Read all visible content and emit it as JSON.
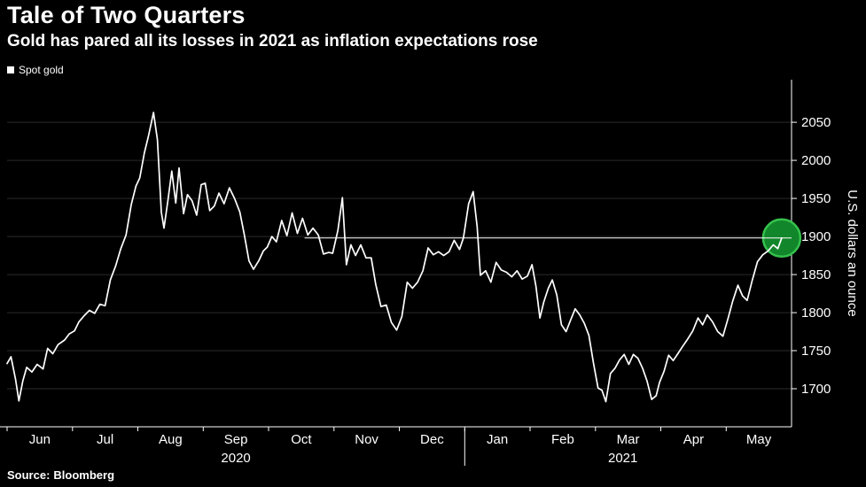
{
  "header": {
    "title": "Tale of Two Quarters",
    "subtitle": "Gold has pared all its losses in 2021 as inflation expectations rose"
  },
  "legend": {
    "label": "Spot gold",
    "marker_color": "#ffffff"
  },
  "source": {
    "label": "Source:",
    "value": "Bloomberg"
  },
  "chart_data": {
    "type": "line",
    "title": "Tale of Two Quarters",
    "subtitle": "Gold has pared all its losses in 2021 as inflation expectations rose",
    "ylabel": "U.S. dollars an ounce",
    "x_months": [
      "Jun",
      "Jul",
      "Aug",
      "Sep",
      "Oct",
      "Nov",
      "Dec",
      "Jan",
      "Feb",
      "Mar",
      "Apr",
      "May"
    ],
    "year_labels": [
      {
        "label": "2020",
        "month": 3.5
      },
      {
        "label": "2021",
        "month": 9.42
      }
    ],
    "year_divider_month": 7,
    "x_range": [
      0,
      12
    ],
    "y_range": [
      1650,
      2106
    ],
    "y_ticks": [
      1700,
      1750,
      1800,
      1850,
      1900,
      1950,
      2000,
      2050
    ],
    "grid": true,
    "colors": {
      "background": "#000000",
      "line": "#ffffff",
      "grid": "#2b2b2b",
      "axis": "#ffffff",
      "text": "#ffffff"
    },
    "last_price": {
      "value": 1898,
      "line_start_month": 4.55,
      "marker_fill": "#12862b",
      "marker_stroke": "#35c24d"
    },
    "series": [
      {
        "name": "Spot gold",
        "color": "#ffffff",
        "points": [
          [
            0.0,
            1733
          ],
          [
            0.06,
            1742
          ],
          [
            0.13,
            1712
          ],
          [
            0.18,
            1684
          ],
          [
            0.24,
            1710
          ],
          [
            0.3,
            1728
          ],
          [
            0.38,
            1722
          ],
          [
            0.46,
            1732
          ],
          [
            0.55,
            1726
          ],
          [
            0.62,
            1753
          ],
          [
            0.7,
            1746
          ],
          [
            0.78,
            1758
          ],
          [
            0.88,
            1764
          ],
          [
            0.95,
            1772
          ],
          [
            1.03,
            1776
          ],
          [
            1.1,
            1788
          ],
          [
            1.18,
            1796
          ],
          [
            1.26,
            1803
          ],
          [
            1.34,
            1799
          ],
          [
            1.42,
            1811
          ],
          [
            1.5,
            1809
          ],
          [
            1.58,
            1843
          ],
          [
            1.66,
            1861
          ],
          [
            1.74,
            1884
          ],
          [
            1.82,
            1902
          ],
          [
            1.9,
            1942
          ],
          [
            1.97,
            1966
          ],
          [
            2.03,
            1977
          ],
          [
            2.1,
            2010
          ],
          [
            2.16,
            2031
          ],
          [
            2.24,
            2063
          ],
          [
            2.3,
            2027
          ],
          [
            2.36,
            1932
          ],
          [
            2.4,
            1911
          ],
          [
            2.46,
            1947
          ],
          [
            2.52,
            1986
          ],
          [
            2.58,
            1944
          ],
          [
            2.63,
            1990
          ],
          [
            2.7,
            1930
          ],
          [
            2.76,
            1955
          ],
          [
            2.83,
            1947
          ],
          [
            2.9,
            1928
          ],
          [
            2.97,
            1968
          ],
          [
            3.03,
            1970
          ],
          [
            3.1,
            1934
          ],
          [
            3.17,
            1940
          ],
          [
            3.24,
            1957
          ],
          [
            3.32,
            1943
          ],
          [
            3.4,
            1964
          ],
          [
            3.48,
            1950
          ],
          [
            3.56,
            1932
          ],
          [
            3.63,
            1902
          ],
          [
            3.7,
            1868
          ],
          [
            3.77,
            1857
          ],
          [
            3.85,
            1868
          ],
          [
            3.92,
            1881
          ],
          [
            3.98,
            1886
          ],
          [
            4.05,
            1900
          ],
          [
            4.12,
            1893
          ],
          [
            4.2,
            1921
          ],
          [
            4.28,
            1901
          ],
          [
            4.36,
            1931
          ],
          [
            4.44,
            1904
          ],
          [
            4.52,
            1924
          ],
          [
            4.6,
            1902
          ],
          [
            4.68,
            1911
          ],
          [
            4.76,
            1902
          ],
          [
            4.84,
            1877
          ],
          [
            4.92,
            1879
          ],
          [
            4.98,
            1878
          ],
          [
            5.06,
            1908
          ],
          [
            5.13,
            1951
          ],
          [
            5.19,
            1863
          ],
          [
            5.26,
            1889
          ],
          [
            5.33,
            1875
          ],
          [
            5.41,
            1889
          ],
          [
            5.49,
            1872
          ],
          [
            5.57,
            1872
          ],
          [
            5.64,
            1837
          ],
          [
            5.72,
            1808
          ],
          [
            5.8,
            1810
          ],
          [
            5.88,
            1787
          ],
          [
            5.96,
            1777
          ],
          [
            6.04,
            1795
          ],
          [
            6.12,
            1840
          ],
          [
            6.2,
            1832
          ],
          [
            6.28,
            1840
          ],
          [
            6.36,
            1855
          ],
          [
            6.44,
            1885
          ],
          [
            6.52,
            1876
          ],
          [
            6.6,
            1880
          ],
          [
            6.68,
            1875
          ],
          [
            6.76,
            1880
          ],
          [
            6.84,
            1895
          ],
          [
            6.92,
            1883
          ],
          [
            6.98,
            1898
          ],
          [
            7.06,
            1943
          ],
          [
            7.13,
            1959
          ],
          [
            7.19,
            1913
          ],
          [
            7.24,
            1849
          ],
          [
            7.32,
            1855
          ],
          [
            7.4,
            1840
          ],
          [
            7.48,
            1866
          ],
          [
            7.56,
            1856
          ],
          [
            7.64,
            1853
          ],
          [
            7.72,
            1847
          ],
          [
            7.8,
            1855
          ],
          [
            7.88,
            1844
          ],
          [
            7.96,
            1848
          ],
          [
            8.03,
            1863
          ],
          [
            8.09,
            1835
          ],
          [
            8.15,
            1793
          ],
          [
            8.21,
            1814
          ],
          [
            8.28,
            1832
          ],
          [
            8.34,
            1843
          ],
          [
            8.41,
            1823
          ],
          [
            8.48,
            1784
          ],
          [
            8.55,
            1775
          ],
          [
            8.62,
            1790
          ],
          [
            8.69,
            1805
          ],
          [
            8.76,
            1797
          ],
          [
            8.83,
            1786
          ],
          [
            8.9,
            1770
          ],
          [
            8.97,
            1734
          ],
          [
            9.04,
            1701
          ],
          [
            9.1,
            1698
          ],
          [
            9.16,
            1683
          ],
          [
            9.23,
            1720
          ],
          [
            9.3,
            1727
          ],
          [
            9.37,
            1738
          ],
          [
            9.44,
            1745
          ],
          [
            9.51,
            1732
          ],
          [
            9.58,
            1745
          ],
          [
            9.65,
            1740
          ],
          [
            9.72,
            1727
          ],
          [
            9.79,
            1710
          ],
          [
            9.86,
            1686
          ],
          [
            9.93,
            1691
          ],
          [
            9.98,
            1708
          ],
          [
            10.05,
            1723
          ],
          [
            10.12,
            1744
          ],
          [
            10.19,
            1737
          ],
          [
            10.26,
            1746
          ],
          [
            10.33,
            1755
          ],
          [
            10.41,
            1765
          ],
          [
            10.49,
            1776
          ],
          [
            10.57,
            1793
          ],
          [
            10.64,
            1784
          ],
          [
            10.71,
            1797
          ],
          [
            10.79,
            1788
          ],
          [
            10.87,
            1775
          ],
          [
            10.95,
            1769
          ],
          [
            11.03,
            1793
          ],
          [
            11.1,
            1815
          ],
          [
            11.18,
            1836
          ],
          [
            11.25,
            1822
          ],
          [
            11.32,
            1816
          ],
          [
            11.4,
            1843
          ],
          [
            11.48,
            1867
          ],
          [
            11.56,
            1876
          ],
          [
            11.64,
            1881
          ],
          [
            11.72,
            1889
          ],
          [
            11.79,
            1884
          ],
          [
            11.85,
            1898
          ]
        ]
      }
    ]
  }
}
